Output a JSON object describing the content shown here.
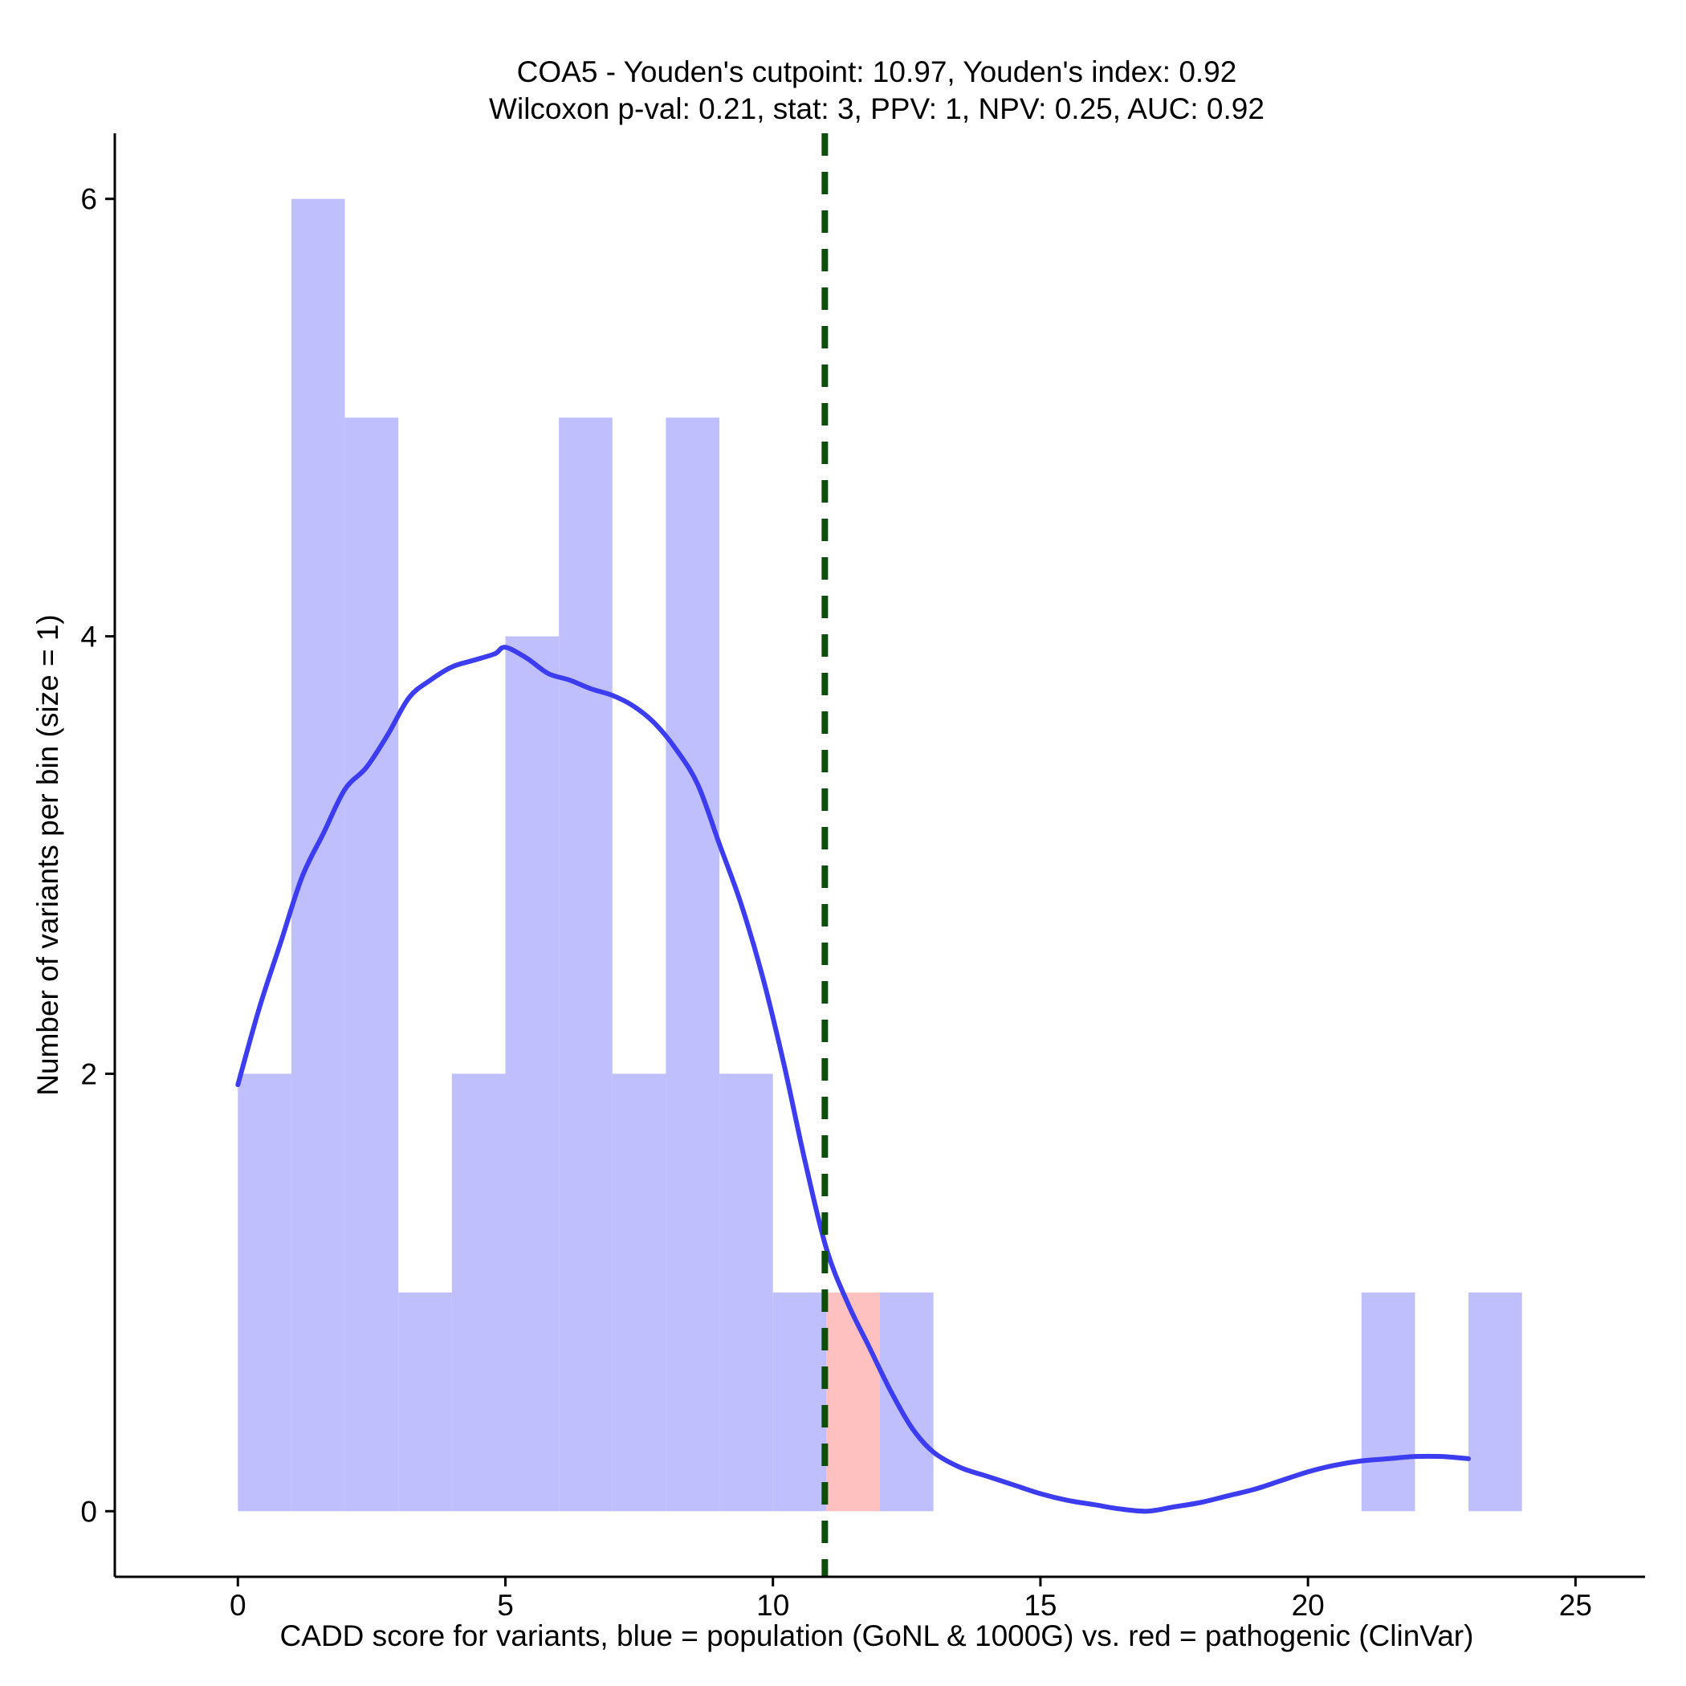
{
  "chart_data": {
    "type": "histogram",
    "title_line1": "COA5 - Youden's cutpoint: 10.97, Youden's index: 0.92",
    "title_line2": "Wilcoxon p-val: 0.21, stat: 3, PPV: 1, NPV: 0.25, AUC: 0.92",
    "xlabel": "CADD score for variants, blue = population (GoNL & 1000G) vs. red = pathogenic (ClinVar)",
    "ylabel": "Number of variants per bin (size = 1)",
    "xlim": [
      -2.3,
      26.3
    ],
    "ylim": [
      -0.3,
      6.3
    ],
    "x_ticks": [
      0,
      5,
      10,
      15,
      20,
      25
    ],
    "y_ticks": [
      0,
      2,
      4,
      6
    ],
    "bin_width": 1,
    "population_color": "#bfbffd",
    "pathogenic_color": "#ffc0c0",
    "density_color": "#3c3cf0",
    "cutpoint_color": "#0b4f0b",
    "cutpoint": 10.97,
    "population_bins": [
      {
        "start": 0,
        "count": 2
      },
      {
        "start": 1,
        "count": 6
      },
      {
        "start": 2,
        "count": 5
      },
      {
        "start": 3,
        "count": 1
      },
      {
        "start": 4,
        "count": 2
      },
      {
        "start": 5,
        "count": 4
      },
      {
        "start": 6,
        "count": 5
      },
      {
        "start": 7,
        "count": 2
      },
      {
        "start": 8,
        "count": 5
      },
      {
        "start": 9,
        "count": 2
      },
      {
        "start": 10,
        "count": 1
      },
      {
        "start": 12,
        "count": 1
      },
      {
        "start": 21,
        "count": 1
      },
      {
        "start": 23,
        "count": 1
      }
    ],
    "pathogenic_bins": [
      {
        "start": 11,
        "count": 1
      }
    ],
    "density_curve": [
      [
        0.0,
        1.95
      ],
      [
        0.4,
        2.3
      ],
      [
        0.8,
        2.6
      ],
      [
        1.2,
        2.9
      ],
      [
        1.6,
        3.1
      ],
      [
        2.0,
        3.3
      ],
      [
        2.4,
        3.4
      ],
      [
        2.8,
        3.55
      ],
      [
        3.2,
        3.72
      ],
      [
        3.6,
        3.8
      ],
      [
        4.0,
        3.86
      ],
      [
        4.4,
        3.89
      ],
      [
        4.8,
        3.92
      ],
      [
        5.0,
        3.95
      ],
      [
        5.4,
        3.9
      ],
      [
        5.8,
        3.83
      ],
      [
        6.2,
        3.8
      ],
      [
        6.6,
        3.76
      ],
      [
        7.0,
        3.73
      ],
      [
        7.4,
        3.68
      ],
      [
        7.8,
        3.6
      ],
      [
        8.2,
        3.48
      ],
      [
        8.6,
        3.32
      ],
      [
        9.0,
        3.05
      ],
      [
        9.4,
        2.78
      ],
      [
        9.8,
        2.45
      ],
      [
        10.2,
        2.05
      ],
      [
        10.6,
        1.6
      ],
      [
        11.0,
        1.2
      ],
      [
        11.4,
        0.95
      ],
      [
        11.8,
        0.75
      ],
      [
        12.2,
        0.55
      ],
      [
        12.6,
        0.38
      ],
      [
        13.0,
        0.27
      ],
      [
        13.5,
        0.2
      ],
      [
        14.0,
        0.16
      ],
      [
        14.5,
        0.12
      ],
      [
        15.0,
        0.08
      ],
      [
        15.5,
        0.05
      ],
      [
        16.0,
        0.03
      ],
      [
        16.5,
        0.01
      ],
      [
        17.0,
        0.0
      ],
      [
        17.5,
        0.02
      ],
      [
        18.0,
        0.04
      ],
      [
        18.5,
        0.07
      ],
      [
        19.0,
        0.1
      ],
      [
        19.5,
        0.14
      ],
      [
        20.0,
        0.18
      ],
      [
        20.5,
        0.21
      ],
      [
        21.0,
        0.23
      ],
      [
        21.5,
        0.24
      ],
      [
        22.0,
        0.25
      ],
      [
        22.5,
        0.25
      ],
      [
        23.0,
        0.24
      ]
    ]
  }
}
